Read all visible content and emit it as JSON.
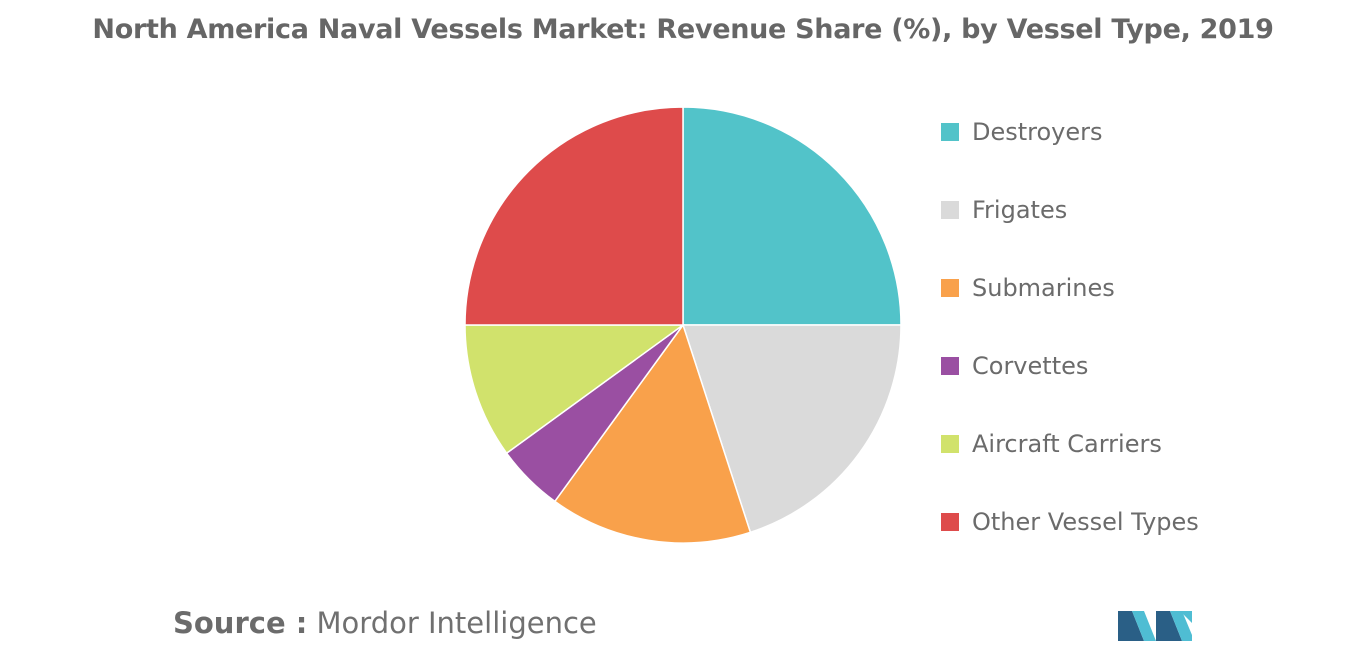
{
  "chart_data": {
    "type": "pie",
    "title": "North America Naval Vessels Market: Revenue Share (%), by Vessel Type, 2019",
    "categories": [
      "Destroyers",
      "Frigates",
      "Submarines",
      "Corvettes",
      "Aircraft Carriers",
      "Other Vessel Types"
    ],
    "values": [
      25,
      20,
      15,
      5,
      10,
      25
    ],
    "colors": [
      "#52c3c9",
      "#dadada",
      "#f9a14b",
      "#9a4fa2",
      "#d1e26c",
      "#de4b4b"
    ],
    "start_angle": "12 o'clock",
    "direction": "clockwise",
    "legend_position": "right"
  },
  "source": {
    "label": "Source :",
    "text": "Mordor Intelligence"
  },
  "logo": {
    "name": "mordor-intelligence-logo",
    "colors": [
      "#2a5f86",
      "#4fbdd3"
    ]
  }
}
